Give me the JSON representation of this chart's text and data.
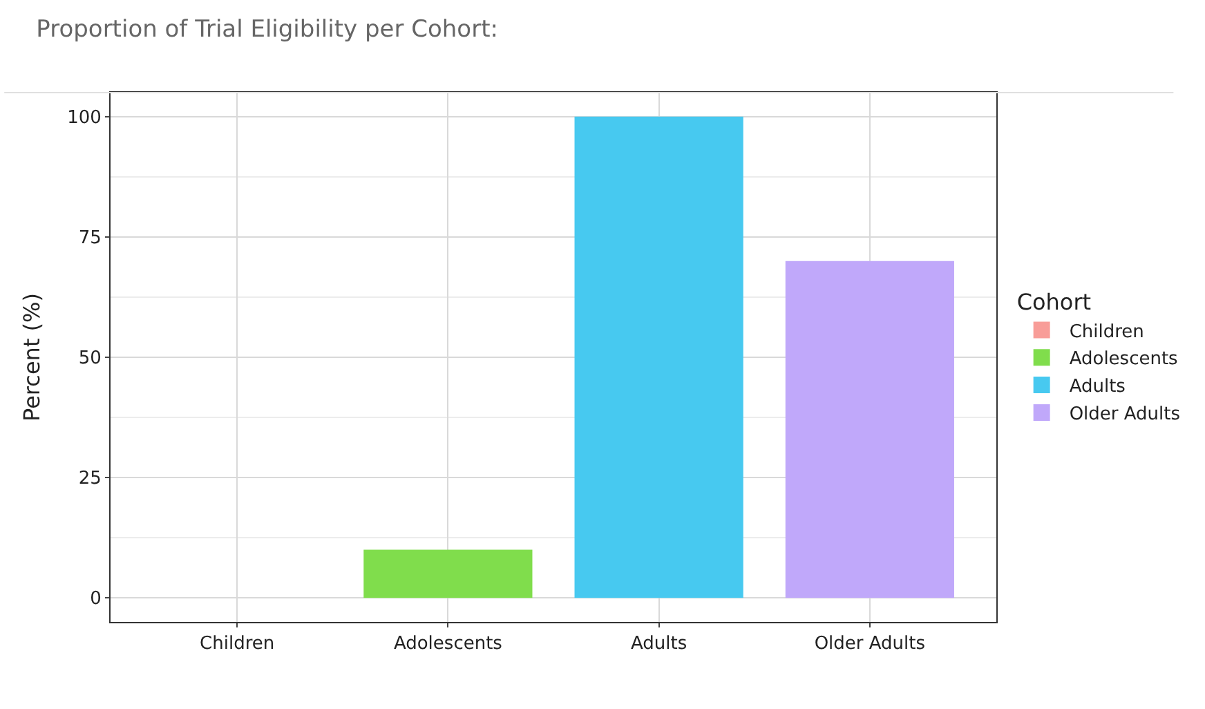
{
  "chart_data": {
    "type": "bar",
    "title": "Proportion of Trial Eligibility per Cohort:",
    "ylabel": "Percent (%)",
    "legend_title": "Cohort",
    "categories": [
      "Children",
      "Adolescents",
      "Adults",
      "Older Adults"
    ],
    "series": [
      {
        "name": "Children",
        "color": "#f89d98",
        "values": [
          0,
          null,
          null,
          null
        ]
      },
      {
        "name": "Adolescents",
        "color": "#80dd4c",
        "values": [
          null,
          10,
          null,
          null
        ]
      },
      {
        "name": "Adults",
        "color": "#47c9f0",
        "values": [
          null,
          null,
          100,
          null
        ]
      },
      {
        "name": "Older Adults",
        "color": "#c0a8fa",
        "values": [
          null,
          null,
          null,
          70
        ]
      }
    ],
    "ylim": [
      -5,
      105
    ],
    "yticks": [
      0,
      25,
      50,
      75,
      100
    ],
    "grid": true,
    "legend": "right"
  }
}
